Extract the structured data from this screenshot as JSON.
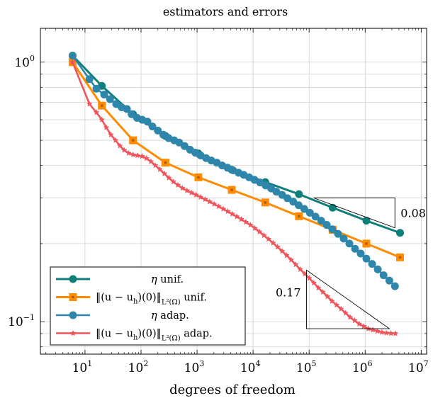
{
  "chart_data": {
    "type": "line",
    "title": "estimators and errors",
    "xlabel": "degrees of freedom",
    "ylabel": "",
    "xscale": "log",
    "yscale": "log",
    "xlim": [
      1.6,
      12500000
    ],
    "ylim": [
      0.075,
      1.35
    ],
    "grid": true,
    "x_ticks": [
      {
        "value": 10,
        "base": "10",
        "exp": "1"
      },
      {
        "value": 100,
        "base": "10",
        "exp": "2"
      },
      {
        "value": 1000,
        "base": "10",
        "exp": "3"
      },
      {
        "value": 10000,
        "base": "10",
        "exp": "4"
      },
      {
        "value": 100000,
        "base": "10",
        "exp": "5"
      },
      {
        "value": 1000000,
        "base": "10",
        "exp": "6"
      },
      {
        "value": 10000000,
        "base": "10",
        "exp": "7"
      }
    ],
    "y_ticks": [
      {
        "value": 1,
        "base": "10",
        "exp": "0"
      },
      {
        "value": 0.1,
        "base": "10",
        "exp": "−1"
      }
    ],
    "legend_position": "bottom-left",
    "series": [
      {
        "name": "η unif.",
        "color": "#0e7f7a",
        "marker": "circle",
        "x": [
          6,
          20,
          72,
          272,
          1056,
          4160,
          16512,
          65792,
          262656,
          1049600,
          4196352
        ],
        "y": [
          1.06,
          0.81,
          0.63,
          0.52,
          0.445,
          0.385,
          0.345,
          0.31,
          0.275,
          0.245,
          0.22
        ]
      },
      {
        "name": "‖(u − u_h)(0)‖_{L²(Ω)} unif.",
        "color": "#ff8c00",
        "marker": "square",
        "x": [
          6,
          20,
          72,
          272,
          1056,
          4160,
          16512,
          65792,
          262656,
          1049600,
          4196352
        ],
        "y": [
          1.0,
          0.68,
          0.5,
          0.41,
          0.36,
          0.322,
          0.288,
          0.255,
          0.226,
          0.2,
          0.177
        ]
      },
      {
        "name": "η adap.",
        "color": "#2e86ab",
        "marker": "circle",
        "x": [
          6,
          12,
          16,
          22,
          28,
          36,
          45,
          56,
          68,
          85,
          105,
          130,
          160,
          200,
          250,
          310,
          390,
          480,
          600,
          750,
          930,
          1160,
          1450,
          1800,
          2250,
          2800,
          3500,
          4400,
          5500,
          6800,
          8500,
          10600,
          13300,
          16700,
          21000,
          26000,
          33000,
          41000,
          52000,
          65000,
          82000,
          103000,
          130000,
          164000,
          206000,
          260000,
          328000,
          414000,
          523000,
          660000,
          833000,
          1050000,
          1330000,
          1680000,
          2130000,
          2700000,
          3400000
        ],
        "y": [
          1.06,
          0.86,
          0.79,
          0.75,
          0.72,
          0.69,
          0.67,
          0.66,
          0.63,
          0.61,
          0.6,
          0.59,
          0.565,
          0.545,
          0.525,
          0.51,
          0.5,
          0.49,
          0.475,
          0.46,
          0.448,
          0.437,
          0.427,
          0.418,
          0.41,
          0.4,
          0.392,
          0.383,
          0.375,
          0.368,
          0.36,
          0.352,
          0.344,
          0.335,
          0.326,
          0.317,
          0.308,
          0.299,
          0.29,
          0.281,
          0.272,
          0.263,
          0.254,
          0.245,
          0.236,
          0.227,
          0.218,
          0.209,
          0.2,
          0.191,
          0.183,
          0.175,
          0.167,
          0.159,
          0.151,
          0.144,
          0.137
        ]
      },
      {
        "name": "‖(u − u_h)(0)‖_{L²(Ω)} adap.",
        "color": "#f2545b",
        "marker": "star",
        "x": [
          6,
          12,
          16,
          20,
          24,
          29,
          35,
          42,
          50,
          60,
          72,
          86,
          104,
          125,
          150,
          180,
          217,
          261,
          314,
          378,
          455,
          548,
          660,
          795,
          958,
          1154,
          1390,
          1674,
          2017,
          2430,
          2927,
          3526,
          4248,
          5117,
          6165,
          7427,
          8948,
          10780,
          12990,
          15650,
          18850,
          22710,
          27360,
          32960,
          39710,
          47840,
          57640,
          69440,
          83660,
          100800,
          121400,
          146300,
          176200,
          212300,
          255800,
          308200,
          371300,
          447300,
          538900,
          649300,
          782200,
          942400,
          1135000,
          1368000,
          1648000,
          1985000,
          2392000,
          2882000,
          3470000
        ],
        "y": [
          1.0,
          0.69,
          0.64,
          0.6,
          0.56,
          0.525,
          0.5,
          0.476,
          0.458,
          0.446,
          0.44,
          0.437,
          0.434,
          0.426,
          0.414,
          0.4,
          0.386,
          0.372,
          0.358,
          0.346,
          0.336,
          0.327,
          0.32,
          0.314,
          0.308,
          0.302,
          0.296,
          0.29,
          0.284,
          0.278,
          0.272,
          0.266,
          0.26,
          0.254,
          0.248,
          0.242,
          0.236,
          0.229,
          0.222,
          0.215,
          0.208,
          0.201,
          0.194,
          0.187,
          0.18,
          0.173,
          0.166,
          0.159,
          0.153,
          0.147,
          0.141,
          0.135,
          0.13,
          0.125,
          0.12,
          0.116,
          0.112,
          0.108,
          0.104,
          0.101,
          0.098,
          0.096,
          0.094,
          0.093,
          0.092,
          0.091,
          0.0905,
          0.0902,
          0.09
        ]
      }
    ],
    "slope_triangles": [
      {
        "label": "0.08",
        "x0": 120000,
        "x1": 3400000,
        "y_top": 0.3,
        "y_bot": 0.23,
        "orientation": "upper"
      },
      {
        "label": "0.17",
        "x0": 90000,
        "x1": 2700000,
        "y_top": 0.158,
        "y_bot": 0.094,
        "orientation": "lower"
      }
    ]
  },
  "legend": {
    "entries": [
      {
        "prefix": "η",
        "mid": "",
        "suffix": " unif.",
        "norm": false
      },
      {
        "prefix": "‖(u − u",
        "mid": "h",
        "suffix": " unif.",
        "norm": true
      },
      {
        "prefix": "η",
        "mid": "",
        "suffix": " adap.",
        "norm": false
      },
      {
        "prefix": "‖(u − u",
        "mid": "h",
        "suffix": " adap.",
        "norm": true
      }
    ],
    "norm_tail": ")(0)‖",
    "norm_sub": "L²(Ω)"
  }
}
